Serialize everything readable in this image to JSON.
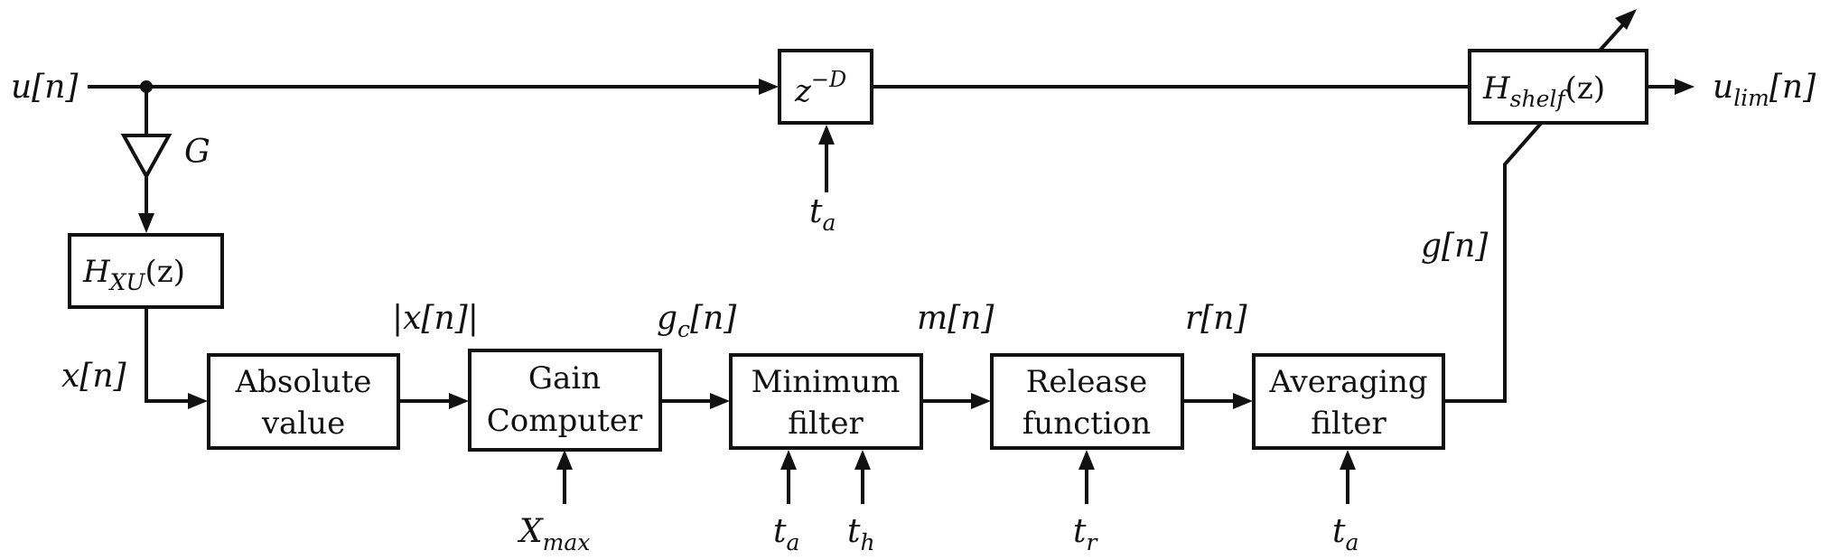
{
  "blocks": {
    "gain_G": "G",
    "hxu": {
      "main": "H",
      "sub": "XU",
      "arg": "(z)"
    },
    "delay": {
      "base": "z",
      "exp": "−D"
    },
    "shelf": {
      "main": "H",
      "sub": "shelf",
      "arg": "(z)"
    },
    "absolute_value": [
      "Absolute",
      "value"
    ],
    "gain_computer": [
      "Gain",
      "Computer"
    ],
    "minimum_filter": [
      "Minimum",
      "filter"
    ],
    "release_function": [
      "Release",
      "function"
    ],
    "averaging_filter": [
      "Averaging",
      "filter"
    ]
  },
  "signals": {
    "input": "u[n]",
    "output": {
      "main": "u",
      "sub": "lim",
      "arg": "[n]"
    },
    "x": "x[n]",
    "abs_x": "|x[n]|",
    "gc": {
      "main": "g",
      "sub": "c",
      "arg": "[n]"
    },
    "m": "m[n]",
    "r": "r[n]",
    "g": "g[n]"
  },
  "parameters": {
    "delay_ta": {
      "main": "t",
      "sub": "a"
    },
    "xmax": {
      "main": "X",
      "sub": "max"
    },
    "min_ta": {
      "main": "t",
      "sub": "a"
    },
    "min_th": {
      "main": "t",
      "sub": "h"
    },
    "release_tr": {
      "main": "t",
      "sub": "r"
    },
    "avg_ta": {
      "main": "t",
      "sub": "a"
    }
  },
  "colors": {
    "ink": "#111111",
    "background": "#ffffff"
  }
}
